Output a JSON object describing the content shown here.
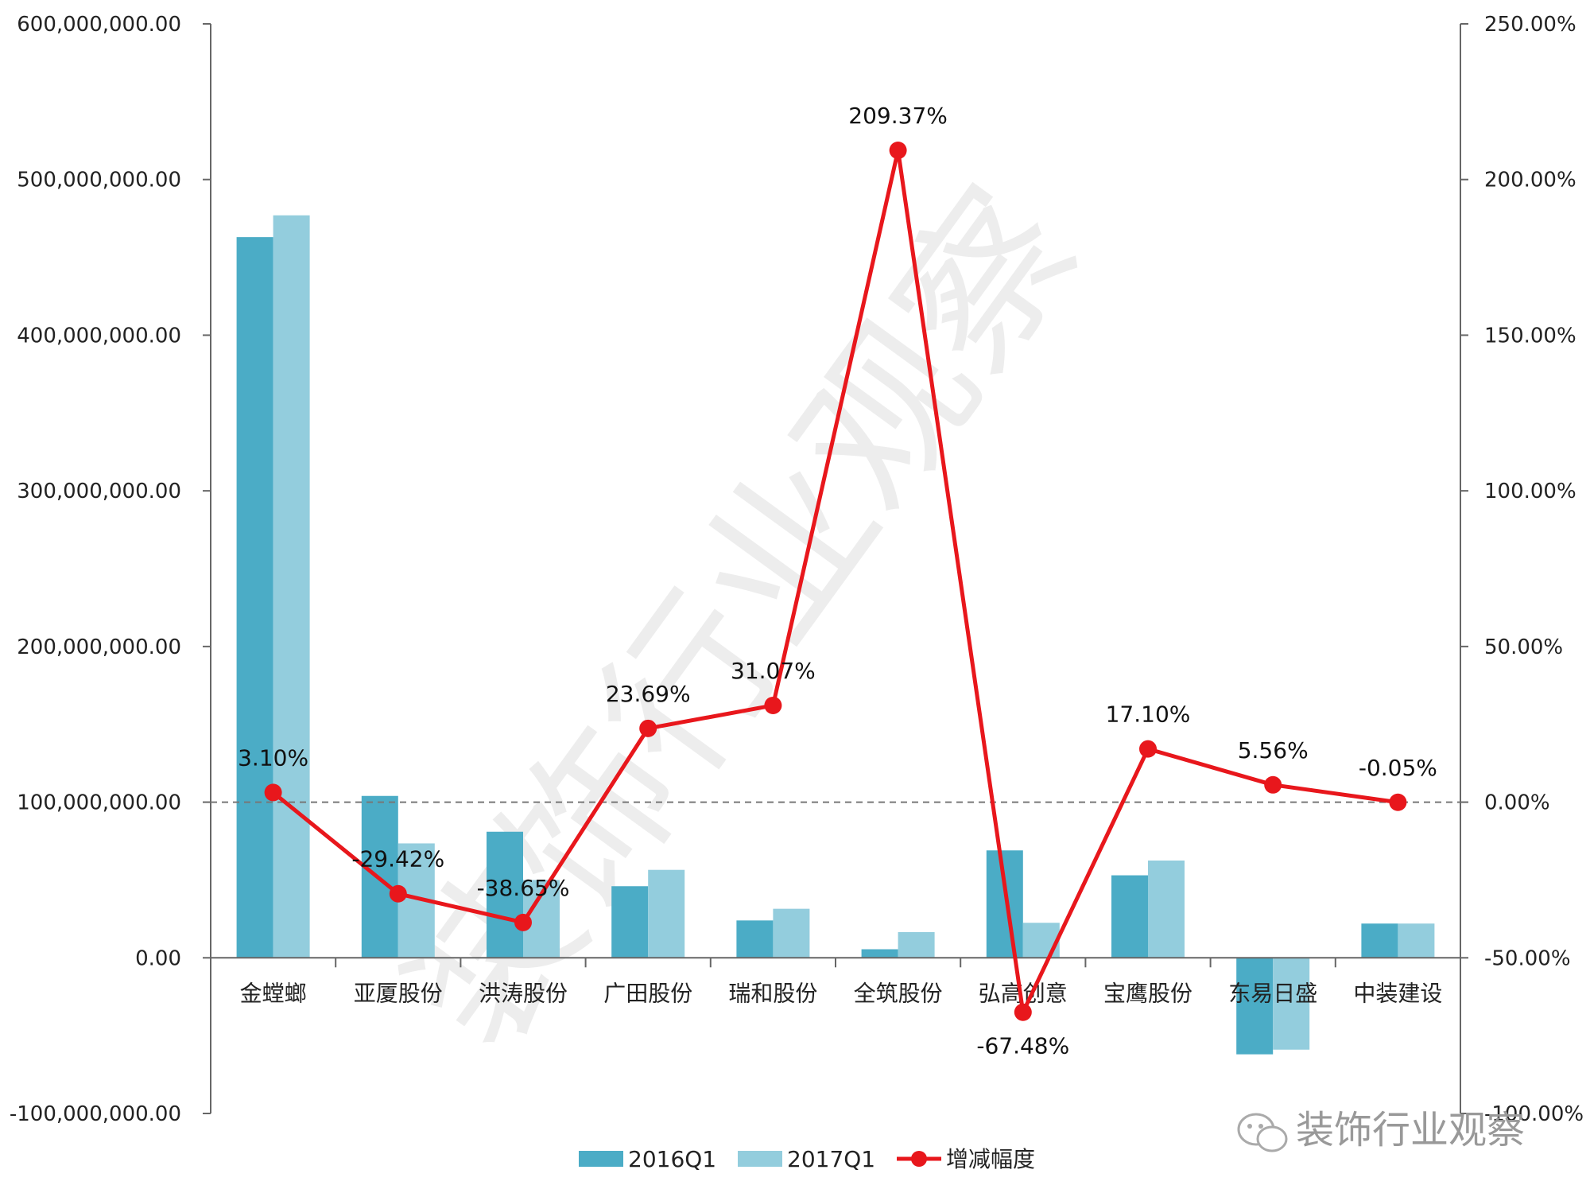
{
  "chart_data": {
    "type": "bar",
    "categories": [
      "金螳螂",
      "亚厦股份",
      "洪涛股份",
      "广田股份",
      "瑞和股份",
      "全筑股份",
      "弘高创意",
      "宝鹰股份",
      "东易日盛",
      "中装建设"
    ],
    "series": [
      {
        "name": "2016Q1",
        "kind": "bar",
        "axis": "left",
        "color": "#4bacc6",
        "values": [
          463000000,
          104000000,
          81000000,
          46000000,
          24000000,
          5500000,
          69000000,
          53000000,
          -62000000,
          22000000
        ]
      },
      {
        "name": "2017Q1",
        "kind": "bar",
        "axis": "left",
        "color": "#93cddd",
        "values": [
          477000000,
          73500000,
          50000000,
          56500000,
          31500000,
          16500000,
          22500000,
          62500000,
          -59000000,
          22000000
        ]
      },
      {
        "name": "增减幅度",
        "kind": "line",
        "axis": "right",
        "color": "#e8171c",
        "values": [
          3.1,
          -29.42,
          -38.65,
          23.69,
          31.07,
          209.37,
          -67.48,
          17.1,
          5.56,
          -0.05
        ],
        "labels": [
          "3.10%",
          "-29.42%",
          "-38.65%",
          "23.69%",
          "31.07%",
          "209.37%",
          "-67.48%",
          "17.10%",
          "5.56%",
          "-0.05%"
        ]
      }
    ],
    "y_left": {
      "lim": [
        -100000000,
        600000000
      ],
      "ticks": [
        -100000000,
        0,
        100000000,
        200000000,
        300000000,
        400000000,
        500000000,
        600000000
      ],
      "tick_labels": [
        "-100,000,000.00",
        "0.00",
        "100,000,000.00",
        "200,000,000.00",
        "300,000,000.00",
        "400,000,000.00",
        "500,000,000.00",
        "600,000,000.00"
      ]
    },
    "y_right": {
      "lim": [
        -100,
        250
      ],
      "ticks": [
        -100,
        -50,
        0,
        50,
        100,
        150,
        200,
        250
      ],
      "tick_labels": [
        "-100.00%",
        "-50.00%",
        "0.00%",
        "50.00%",
        "100.00%",
        "150.00%",
        "200.00%",
        "250.00%"
      ],
      "reference_line": 0
    },
    "legend_position": "bottom",
    "grid": false,
    "watermark": "装饰行业观察",
    "logo_text": "装饰行业观察"
  }
}
